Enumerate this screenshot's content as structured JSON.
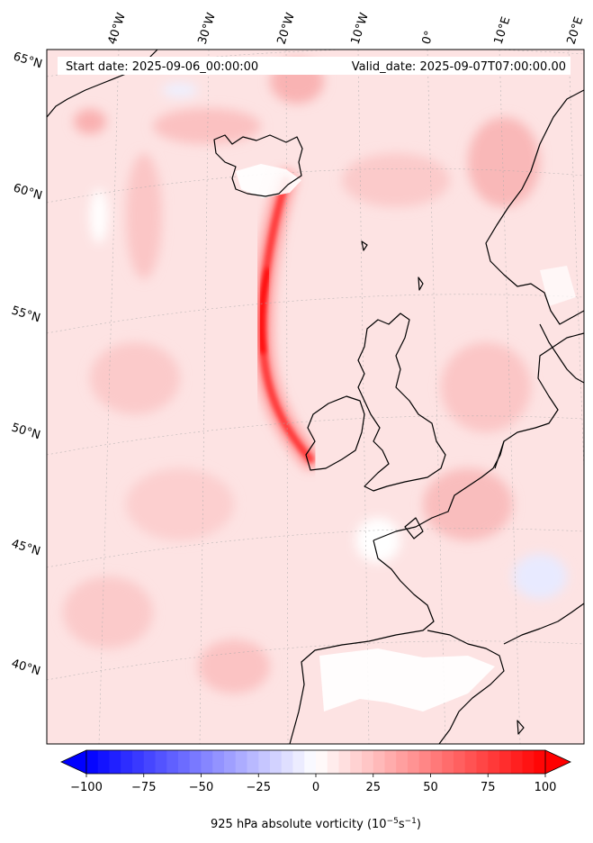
{
  "header": {
    "start_date": "Start date: 2025-09-06_00:00:00",
    "valid_date": "Valid_date: 2025-09-07T07:00:00.00"
  },
  "map": {
    "projection": "polar stereographic",
    "longitude_labels": [
      "40°W",
      "30°W",
      "20°W",
      "10°W",
      "0°",
      "10°E",
      "20°E"
    ],
    "latitude_labels": [
      "65°N",
      "60°N",
      "55°N",
      "50°N",
      "45°N",
      "40°N"
    ],
    "field": "925 hPa absolute vorticity",
    "max_region": "Atlantic jet near 20°W, 50–56°N",
    "colors": {
      "land_coast": "#000000",
      "positive": "#ff0000",
      "negative": "#0000ff",
      "zero": "#ffffff",
      "background_tint": "#fde1e1"
    }
  },
  "colorbar": {
    "label": "925 hPa absolute vorticity (10",
    "label_sup1": "−5",
    "label_mid": "s",
    "label_sup2": "−1",
    "label_end": ")",
    "ticks": [
      "−100",
      "−75",
      "−50",
      "−25",
      "0",
      "25",
      "50",
      "75",
      "100"
    ],
    "tick_values": [
      -100,
      -75,
      -50,
      -25,
      0,
      25,
      50,
      75,
      100
    ],
    "range": [
      -100,
      100
    ],
    "extend": "both",
    "cmap": "bwr"
  }
}
